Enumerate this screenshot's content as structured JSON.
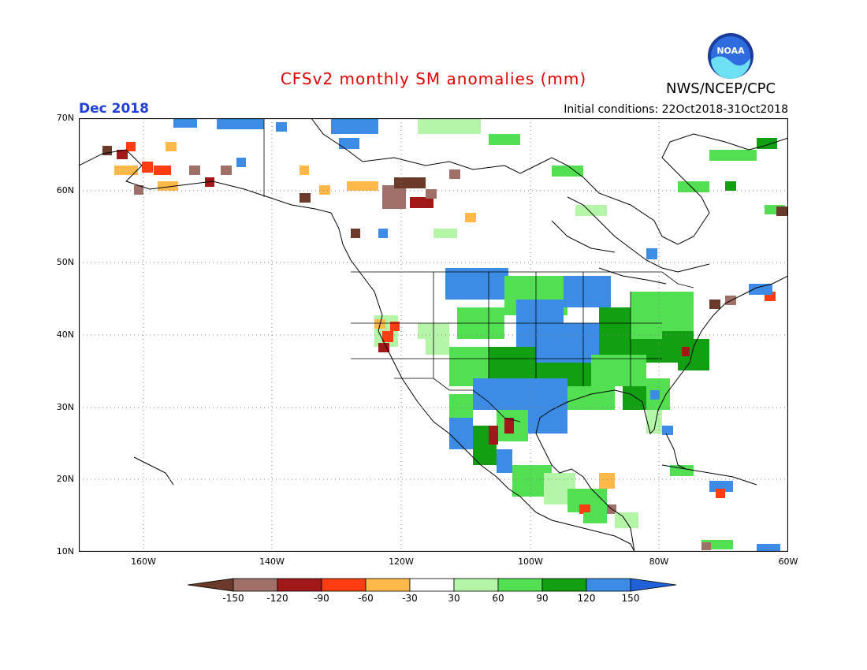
{
  "header": {
    "title": "CFSv2 monthly SM anomalies (mm)",
    "org": "NWS/NCEP/CPC",
    "period": "Dec 2018",
    "initial_conditions": "Initial conditions: 22Oct2018-31Oct2018",
    "logo_text": "NOAA"
  },
  "axes": {
    "lat_labels": [
      "70N",
      "60N",
      "50N",
      "40N",
      "30N",
      "20N",
      "10N"
    ],
    "lon_labels": [
      "160W",
      "140W",
      "120W",
      "100W",
      "80W",
      "60W"
    ]
  },
  "colorbar": {
    "labels": [
      "-150",
      "-120",
      "-90",
      "-60",
      "-30",
      "30",
      "60",
      "90",
      "120",
      "150"
    ],
    "colors": [
      "#6b3a2a",
      "#a07068",
      "#a01818",
      "#ff3c12",
      "#ffb84a",
      "#ffffff",
      "#b4f5a8",
      "#52e052",
      "#12a012",
      "#3c8ce6",
      "#2060d8"
    ]
  },
  "colors": {
    "ocean": "#ffffff",
    "coast": "#000000",
    "grid": "#808080"
  }
}
